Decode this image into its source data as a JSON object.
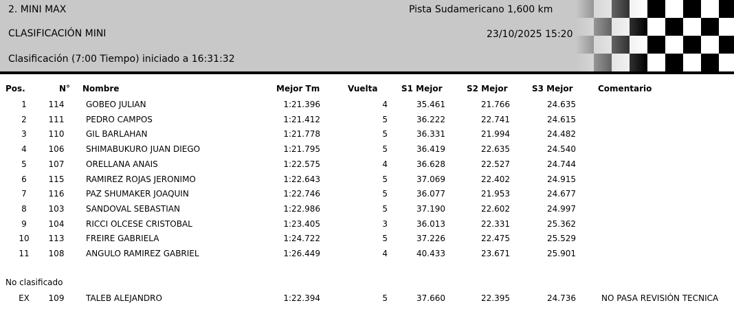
{
  "header": {
    "event_title": "2. MINI MAX",
    "session_title": "CLASIFICACIÓN MINI",
    "session_detail": "Clasificación  (7:00 Tiempo) iniciado a 16:31:32",
    "track": "Pista Sudamericano 1,600 km",
    "datetime": "23/10/2025 15:20"
  },
  "columns": {
    "pos": "Pos.",
    "num": "N°",
    "name": "Nombre",
    "best": "Mejor Tm",
    "lap": "Vuelta",
    "s1": "S1 Mejor",
    "s2": "S2 Mejor",
    "s3": "S3 Mejor",
    "comment": "Comentario"
  },
  "rows": [
    {
      "pos": "1",
      "num": "114",
      "name": "GOBEO JULIAN",
      "best": "1:21.396",
      "lap": "4",
      "s1": "35.461",
      "s2": "21.766",
      "s3": "24.635",
      "comment": ""
    },
    {
      "pos": "2",
      "num": "111",
      "name": "PEDRO CAMPOS",
      "best": "1:21.412",
      "lap": "5",
      "s1": "36.222",
      "s2": "22.741",
      "s3": "24.615",
      "comment": ""
    },
    {
      "pos": "3",
      "num": "110",
      "name": "GIL BARLAHAN",
      "best": "1:21.778",
      "lap": "5",
      "s1": "36.331",
      "s2": "21.994",
      "s3": "24.482",
      "comment": ""
    },
    {
      "pos": "4",
      "num": "106",
      "name": "SHIMABUKURO JUAN DIEGO",
      "best": "1:21.795",
      "lap": "5",
      "s1": "36.419",
      "s2": "22.635",
      "s3": "24.540",
      "comment": ""
    },
    {
      "pos": "5",
      "num": "107",
      "name": "ORELLANA ANAIS",
      "best": "1:22.575",
      "lap": "4",
      "s1": "36.628",
      "s2": "22.527",
      "s3": "24.744",
      "comment": ""
    },
    {
      "pos": "6",
      "num": "115",
      "name": "RAMIREZ ROJAS JERONIMO",
      "best": "1:22.643",
      "lap": "5",
      "s1": "37.069",
      "s2": "22.402",
      "s3": "24.915",
      "comment": ""
    },
    {
      "pos": "7",
      "num": "116",
      "name": "PAZ SHUMAKER JOAQUIN",
      "best": "1:22.746",
      "lap": "5",
      "s1": "36.077",
      "s2": "21.953",
      "s3": "24.677",
      "comment": ""
    },
    {
      "pos": "8",
      "num": "103",
      "name": "SANDOVAL SEBASTIAN",
      "best": "1:22.986",
      "lap": "5",
      "s1": "37.190",
      "s2": "22.602",
      "s3": "24.997",
      "comment": ""
    },
    {
      "pos": "9",
      "num": "104",
      "name": "RICCI OLCESE CRISTOBAL",
      "best": "1:23.405",
      "lap": "3",
      "s1": "36.013",
      "s2": "22.331",
      "s3": "25.362",
      "comment": ""
    },
    {
      "pos": "10",
      "num": "113",
      "name": "FREIRE GABRIELA",
      "best": "1:24.722",
      "lap": "5",
      "s1": "37.226",
      "s2": "22.475",
      "s3": "25.529",
      "comment": ""
    },
    {
      "pos": "11",
      "num": "108",
      "name": "ANGULO RAMIREZ GABRIEL",
      "best": "1:26.449",
      "lap": "4",
      "s1": "40.433",
      "s2": "23.671",
      "s3": "25.901",
      "comment": ""
    }
  ],
  "not_classified_label": "No clasificado",
  "not_classified": [
    {
      "pos": "EX",
      "num": "109",
      "name": "TALEB  ALEJANDRO",
      "best": "1:22.394",
      "lap": "5",
      "s1": "37.660",
      "s2": "22.395",
      "s3": "24.736",
      "comment": "NO PASA REVISIÓN TECNICA"
    }
  ]
}
